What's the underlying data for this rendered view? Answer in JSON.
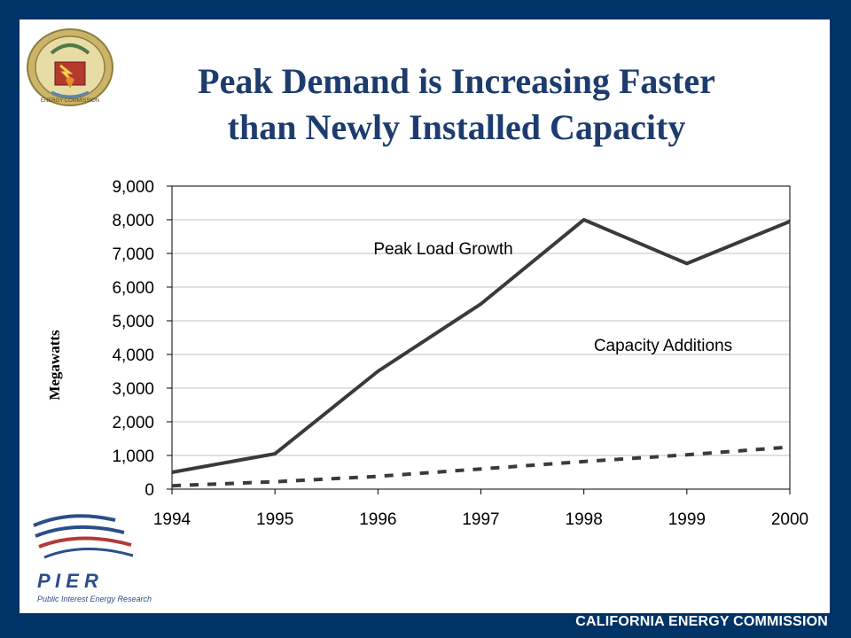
{
  "slide": {
    "title_line1": "Peak Demand is Increasing Faster",
    "title_line2": "than Newly Installed Capacity",
    "footer": "CALIFORNIA ENERGY COMMISSION",
    "pier_logo_text": "P I E R",
    "pier_tagline": "Public Interest Energy Research",
    "seal_text": "ENERGY COMMISSION"
  },
  "colors": {
    "frame": "#003366",
    "title": "#1d3c6e",
    "series_line": "#3a3a3a",
    "grid": "#c0c0c0",
    "pier_blue": "#2b4d8c",
    "pier_red": "#b23a3a"
  },
  "chart_data": {
    "type": "line",
    "ylabel": "Megawatts",
    "xlabel": "",
    "categories": [
      "1994",
      "1995",
      "1996",
      "1997",
      "1998",
      "1999",
      "2000"
    ],
    "ylim": [
      0,
      9000
    ],
    "yticks": [
      "0",
      "1,000",
      "2,000",
      "3,000",
      "4,000",
      "5,000",
      "6,000",
      "7,000",
      "8,000",
      "9,000"
    ],
    "grid": true,
    "series": [
      {
        "name": "Peak Load Growth",
        "values": [
          500,
          1050,
          3500,
          5500,
          8000,
          6700,
          7950
        ],
        "style": "solid"
      },
      {
        "name": "Capacity Additions",
        "values": [
          100,
          220,
          380,
          600,
          820,
          1020,
          1250
        ],
        "style": "dashed"
      }
    ],
    "annotations": [
      "Peak Load Growth",
      "Capacity Additions"
    ]
  }
}
